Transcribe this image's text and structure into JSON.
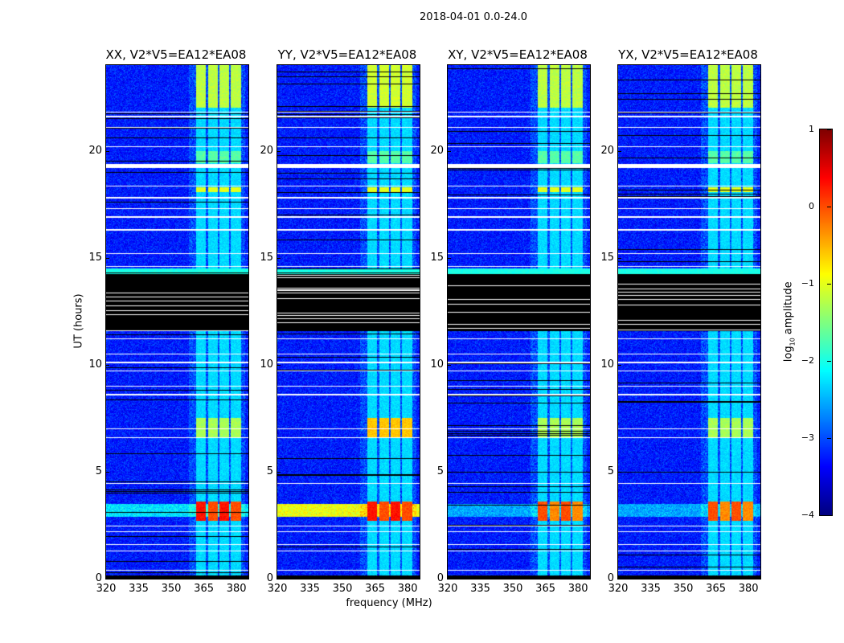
{
  "chart_data": {
    "type": "heatmap",
    "title": "2018-04-01 0.0-24.0",
    "xlabel": "frequency (MHz)",
    "ylabel": "UT (hours)",
    "xlim": [
      320,
      385.5
    ],
    "ylim": [
      0,
      24
    ],
    "xticks": [
      "320",
      "335",
      "350",
      "365",
      "380"
    ],
    "xtick_values": [
      320,
      335,
      350,
      365,
      380
    ],
    "yticks": [
      "0",
      "5",
      "10",
      "15",
      "20"
    ],
    "ytick_values": [
      0,
      5,
      10,
      15,
      20
    ],
    "panels": [
      {
        "title": "XX, V2*V5=EA12*EA08",
        "pol": "XX"
      },
      {
        "title": "YY, V2*V5=EA12*EA08",
        "pol": "YY"
      },
      {
        "title": "XY, V2*V5=EA12*EA08",
        "pol": "XY"
      },
      {
        "title": "YX, V2*V5=EA12*EA08",
        "pol": "YX"
      }
    ],
    "rfi_bands_mhz": [
      [
        361.5,
        366
      ],
      [
        367,
        371.5
      ],
      [
        372,
        376.5
      ],
      [
        377.5,
        382
      ]
    ],
    "flagged_white_hours": [
      0.4,
      1.3,
      1.6,
      2.2,
      2.45,
      4.45,
      6.6,
      7.0,
      8.6,
      9.0,
      9.7,
      10.1,
      10.5,
      11.2,
      14.6,
      15.2,
      16.3,
      16.9,
      17.3,
      17.8,
      18.35,
      20.2,
      21.1,
      21.6,
      21.8
    ],
    "flagged_white_ranges": [
      [
        19.2,
        19.38
      ]
    ],
    "flagged_black_ranges": [
      [
        11.55,
        14.25
      ],
      [
        0,
        0.15
      ]
    ],
    "colorbar": {
      "label_main": "log",
      "label_sub": "10",
      "label_rest": " amplitude",
      "range": [
        -4,
        1
      ],
      "ticks": [
        "−4",
        "−3",
        "−2",
        "−1",
        "0",
        "1"
      ],
      "tick_values": [
        -4,
        -3,
        -2,
        -1,
        0,
        1
      ],
      "colormap": "jet"
    }
  }
}
